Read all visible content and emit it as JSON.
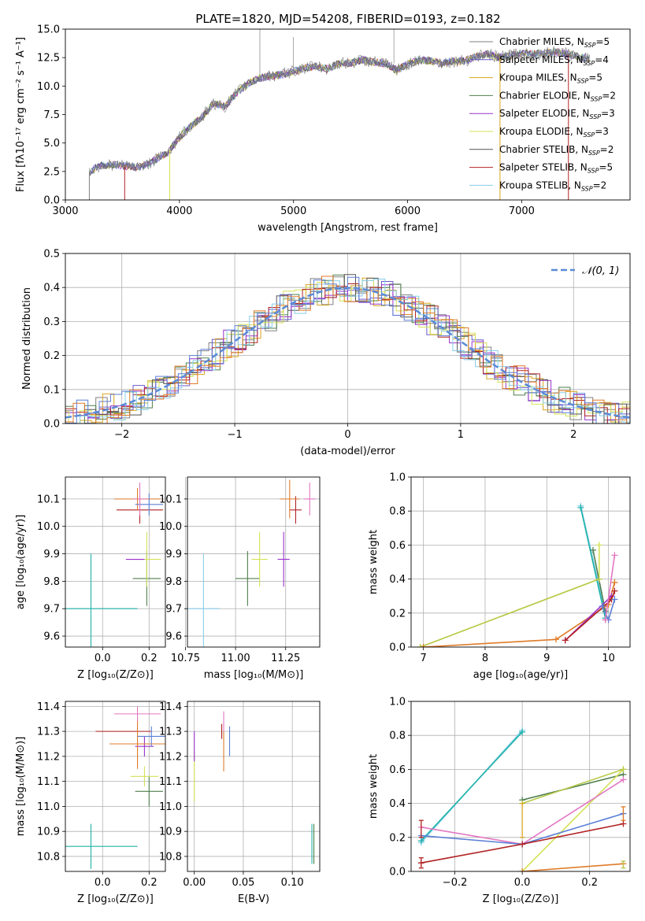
{
  "figure": {
    "title": "PLATE=1820, MJD=54208, FIBERID=0193, z=0.182"
  },
  "chart_data": [
    {
      "id": "spectrum",
      "type": "line",
      "xlabel": "wavelength [Angstrom, rest frame]",
      "ylabel": "Flux [fλ10⁻¹⁷ erg cm⁻² s⁻¹ A⁻¹]",
      "xlim": [
        3000,
        7950
      ],
      "ylim": [
        0,
        15
      ],
      "xticks": [
        3000,
        4000,
        5000,
        6000,
        7000
      ],
      "yticks": [
        0.0,
        2.5,
        5.0,
        7.5,
        10.0,
        12.5,
        15.0
      ],
      "grid": false,
      "legend_position": "right",
      "data_x": [
        3200,
        3300,
        3400,
        3500,
        3600,
        3700,
        3800,
        3900,
        4000,
        4100,
        4200,
        4300,
        4400,
        4500,
        4600,
        4700,
        4800,
        4900,
        5000,
        5100,
        5200,
        5300,
        5400,
        5500,
        5600,
        5700,
        5800,
        5900,
        6000,
        6100,
        6200,
        6300,
        6400,
        6500,
        6600,
        6700,
        6800,
        6900,
        7000,
        7100,
        7200,
        7300,
        7400,
        7500,
        7600
      ],
      "data_y": [
        2.4,
        3.0,
        3.1,
        3.0,
        2.9,
        3.0,
        3.6,
        4.2,
        5.5,
        6.5,
        7.3,
        8.5,
        8.2,
        9.4,
        10.2,
        10.7,
        10.9,
        11.0,
        11.3,
        11.6,
        11.7,
        11.5,
        12.0,
        12.0,
        12.3,
        12.1,
        12.0,
        11.4,
        11.9,
        12.3,
        12.2,
        12.0,
        12.2,
        12.2,
        12.6,
        12.8,
        12.5,
        12.7,
        12.9,
        12.8,
        12.9,
        13.0,
        12.8,
        12.6,
        12.4
      ],
      "series": [
        {
          "name": "Chabrier MILES, N_SSP=5",
          "color": "#808080"
        },
        {
          "name": "Salpeter MILES, N_SSP=4",
          "color": "#6a5acd"
        },
        {
          "name": "Kroupa MILES, N_SSP=5",
          "color": "#daa520"
        },
        {
          "name": "Chabrier ELODIE, N_SSP=2",
          "color": "#4f7f4f"
        },
        {
          "name": "Salpeter ELODIE, N_SSP=3",
          "color": "#9932cc"
        },
        {
          "name": "Kroupa ELODIE, N_SSP=3",
          "color": "#d4e157"
        },
        {
          "name": "Chabrier STELIB, N_SSP=2",
          "color": "#555555"
        },
        {
          "name": "Salpeter STELIB, N_SSP=5",
          "color": "#b22222"
        },
        {
          "name": "Kroupa STELIB, N_SSP=2",
          "color": "#87ceeb"
        }
      ],
      "legend_labels": [
        {
          "main": "Chabrier MILES, N",
          "sub": "SSP",
          "tail": "=5"
        },
        {
          "main": "Salpeter MILES, N",
          "sub": "SSP",
          "tail": "=4"
        },
        {
          "main": "Kroupa MILES, N",
          "sub": "SSP",
          "tail": "=5"
        },
        {
          "main": "Chabrier ELODIE, N",
          "sub": "SSP",
          "tail": "=2"
        },
        {
          "main": "Salpeter ELODIE, N",
          "sub": "SSP",
          "tail": "=3"
        },
        {
          "main": "Kroupa ELODIE, N",
          "sub": "SSP",
          "tail": "=3"
        },
        {
          "main": "Chabrier STELIB, N",
          "sub": "SSP",
          "tail": "=2"
        },
        {
          "main": "Salpeter STELIB, N",
          "sub": "SSP",
          "tail": "=5"
        },
        {
          "main": "Kroupa STELIB, N",
          "sub": "SSP",
          "tail": "=2"
        }
      ]
    },
    {
      "id": "residuals",
      "type": "line",
      "xlabel": "(data-model)/error",
      "ylabel": "Normed distribution",
      "xlim": [
        -2.5,
        2.5
      ],
      "ylim": [
        0,
        0.5
      ],
      "xticks": [
        -2,
        -1,
        0,
        1,
        2
      ],
      "yticks": [
        0.0,
        0.1,
        0.2,
        0.3,
        0.4,
        0.5
      ],
      "grid": true,
      "legend": "𝒩(0, 1)",
      "legend_position": "top-right",
      "histogram_bin_width": 0.1
    },
    {
      "id": "age-vs-Z",
      "type": "scatter",
      "xlabel": "Z [log₁₀(Z/Z⊙)]",
      "ylabel": "age  [log₁₀(age/yr)]",
      "xlim": [
        -0.16,
        0.27
      ],
      "ylim": [
        9.56,
        10.18
      ],
      "xticks": [
        0.0,
        0.2
      ],
      "yticks": [
        9.6,
        9.7,
        9.8,
        9.9,
        10.0,
        10.1
      ],
      "grid": true,
      "points": [
        {
          "x": -0.05,
          "y": 9.7,
          "xerr": 0.2,
          "yerr": 0.2,
          "color": "#20b2aa"
        },
        {
          "x": 0.19,
          "y": 9.81,
          "xerr": 0.06,
          "yerr": 0.1,
          "color": "#4f7f4f"
        },
        {
          "x": 0.19,
          "y": 9.88,
          "xerr": 0.06,
          "yerr": 0.1,
          "color": "#d4e157"
        },
        {
          "x": 0.14,
          "y": 9.88,
          "xerr": 0.04,
          "yerr": 0,
          "color": "#9932cc"
        },
        {
          "x": 0.16,
          "y": 10.06,
          "xerr": 0.1,
          "yerr": 0.05,
          "color": "#b22222"
        },
        {
          "x": 0.15,
          "y": 10.1,
          "xerr": 0.1,
          "yerr": 0.04,
          "color": "#e07b28"
        },
        {
          "x": 0.2,
          "y": 10.08,
          "xerr": 0.06,
          "yerr": 0.04,
          "color": "#5b7fd6"
        },
        {
          "x": 0.16,
          "y": 10.1,
          "xerr": 0.03,
          "yerr": 0.06,
          "color": "#e377c2"
        }
      ]
    },
    {
      "id": "age-vs-mass",
      "type": "scatter",
      "xlabel": "mass [log₁₀(M/M⊙)]",
      "ylabel": "",
      "xlim": [
        10.76,
        11.42
      ],
      "ylim": [
        9.56,
        10.18
      ],
      "xticks": [
        10.75,
        11.0,
        11.25
      ],
      "yticks": [
        9.6,
        9.7,
        9.8,
        9.9,
        10.0,
        10.1
      ],
      "grid": true,
      "points": [
        {
          "x": 10.84,
          "y": 9.7,
          "xerr": 0.08,
          "yerr": 0.2,
          "color": "#87ceeb"
        },
        {
          "x": 11.06,
          "y": 9.81,
          "xerr": 0.06,
          "yerr": 0.1,
          "color": "#4f7f4f"
        },
        {
          "x": 11.12,
          "y": 9.88,
          "xerr": 0.04,
          "yerr": 0.1,
          "color": "#d4e157"
        },
        {
          "x": 11.24,
          "y": 9.88,
          "xerr": 0.03,
          "yerr": 0.1,
          "color": "#9932cc"
        },
        {
          "x": 11.3,
          "y": 10.06,
          "xerr": 0.03,
          "yerr": 0.05,
          "color": "#b22222"
        },
        {
          "x": 11.27,
          "y": 10.1,
          "xerr": 0.05,
          "yerr": 0.07,
          "color": "#e07b28"
        },
        {
          "x": 11.37,
          "y": 10.1,
          "xerr": 0.03,
          "yerr": 0.06,
          "color": "#e377c2"
        }
      ]
    },
    {
      "id": "massweight-vs-age",
      "type": "line",
      "xlabel": "age  [log₁₀(age/yr)]",
      "ylabel": "mass weight",
      "xlim": [
        6.8,
        10.35
      ],
      "ylim": [
        0,
        1.0
      ],
      "xticks": [
        7,
        8,
        9,
        10
      ],
      "yticks": [
        0.0,
        0.2,
        0.4,
        0.6,
        0.8,
        1.0
      ],
      "grid": true,
      "series": [
        {
          "color": "#87ceeb",
          "x": [
            9.55,
            9.95
          ],
          "y": [
            0.83,
            0.2
          ]
        },
        {
          "color": "#20b2aa",
          "x": [
            9.55,
            9.95
          ],
          "y": [
            0.82,
            0.17
          ]
        },
        {
          "color": "#4f7f4f",
          "x": [
            9.75,
            9.95
          ],
          "y": [
            0.57,
            0.21
          ]
        },
        {
          "color": "#d4e157",
          "x": [
            6.95,
            9.85,
            9.85
          ],
          "y": [
            0.0,
            0.4,
            0.6
          ]
        },
        {
          "color": "#b8c94a",
          "x": [
            6.95,
            9.85
          ],
          "y": [
            0.0,
            0.4
          ]
        },
        {
          "color": "#e07b28",
          "x": [
            7.0,
            9.15,
            10.0,
            10.1
          ],
          "y": [
            0.0,
            0.045,
            0.25,
            0.38
          ]
        },
        {
          "color": "#9932cc",
          "x": [
            9.3,
            10.05
          ],
          "y": [
            0.04,
            0.3
          ]
        },
        {
          "color": "#b22222",
          "x": [
            9.3,
            10.05,
            10.1
          ],
          "y": [
            0.04,
            0.28,
            0.33
          ]
        },
        {
          "color": "#5b7fd6",
          "x": [
            9.9,
            10.0,
            10.1
          ],
          "y": [
            0.24,
            0.16,
            0.28
          ]
        },
        {
          "color": "#e377c2",
          "x": [
            9.95,
            10.1
          ],
          "y": [
            0.16,
            0.54
          ]
        }
      ]
    },
    {
      "id": "mass-vs-Z",
      "type": "scatter",
      "xlabel": "Z [log₁₀(Z/Z⊙)]",
      "ylabel": "mass [log₁₀(M/M⊙)]",
      "xlim": [
        -0.16,
        0.27
      ],
      "ylim": [
        10.74,
        11.42
      ],
      "xticks": [
        0.0,
        0.2
      ],
      "yticks": [
        10.8,
        10.9,
        11.0,
        11.1,
        11.2,
        11.3,
        11.4
      ],
      "grid": true,
      "points": [
        {
          "x": -0.05,
          "y": 10.84,
          "xerr": 0.2,
          "yerr": 0.09,
          "color": "#20b2aa"
        },
        {
          "x": 0.2,
          "y": 11.06,
          "xerr": 0.06,
          "yerr": 0.06,
          "color": "#4f7f4f"
        },
        {
          "x": 0.18,
          "y": 11.12,
          "xerr": 0.06,
          "yerr": 0.04,
          "color": "#d4e157"
        },
        {
          "x": 0.18,
          "y": 11.24,
          "xerr": 0.04,
          "yerr": 0.04,
          "color": "#9932cc"
        },
        {
          "x": 0.09,
          "y": 11.3,
          "xerr": 0.12,
          "yerr": 0.0,
          "color": "#b22222"
        },
        {
          "x": 0.15,
          "y": 11.25,
          "xerr": 0.12,
          "yerr": 0.1,
          "color": "#e07b28"
        },
        {
          "x": 0.21,
          "y": 11.28,
          "xerr": 0.06,
          "yerr": 0.04,
          "color": "#5b7fd6"
        },
        {
          "x": 0.15,
          "y": 11.37,
          "xerr": 0.1,
          "yerr": 0.03,
          "color": "#e377c2"
        }
      ]
    },
    {
      "id": "mass-vs-EBV",
      "type": "scatter",
      "xlabel": "E(B-V)",
      "ylabel": "",
      "xlim": [
        -0.007,
        0.128
      ],
      "ylim": [
        10.74,
        11.42
      ],
      "xticks": [
        0.0,
        0.05,
        0.1
      ],
      "yticks": [
        10.8,
        10.9,
        11.0,
        11.1,
        11.2,
        11.3,
        11.4
      ],
      "grid": true,
      "points": [
        {
          "x": 0.0,
          "y": 11.12,
          "xerr": 0,
          "yerr": 0.1,
          "color": "#d4e157"
        },
        {
          "x": 0.0,
          "y": 11.24,
          "xerr": 0,
          "yerr": 0.06,
          "color": "#9932cc"
        },
        {
          "x": 0.03,
          "y": 11.34,
          "xerr": 0,
          "yerr": 0.04,
          "color": "#e377c2"
        },
        {
          "x": 0.028,
          "y": 11.3,
          "xerr": 0,
          "yerr": 0.03,
          "color": "#b22222"
        },
        {
          "x": 0.03,
          "y": 11.22,
          "xerr": 0,
          "yerr": 0.08,
          "color": "#e07b28"
        },
        {
          "x": 0.036,
          "y": 11.26,
          "xerr": 0,
          "yerr": 0.06,
          "color": "#5b7fd6"
        },
        {
          "x": 0.12,
          "y": 10.85,
          "xerr": 0,
          "yerr": 0.08,
          "color": "#20b2aa"
        },
        {
          "x": 0.122,
          "y": 10.85,
          "xerr": 0,
          "yerr": 0.08,
          "color": "#4f7f4f"
        }
      ]
    },
    {
      "id": "massweight-vs-Z",
      "type": "line",
      "xlabel": "Z [log₁₀(Z/Z⊙)]",
      "ylabel": "mass weight",
      "xlim": [
        -0.33,
        0.32
      ],
      "ylim": [
        0,
        1.0
      ],
      "xticks": [
        -0.2,
        0.0,
        0.2
      ],
      "yticks": [
        0.0,
        0.2,
        0.4,
        0.6,
        0.8,
        1.0
      ],
      "grid": true,
      "series": [
        {
          "color": "#87ceeb",
          "x": [
            -0.3,
            0.0
          ],
          "y": [
            0.17,
            0.83
          ]
        },
        {
          "color": "#20b2aa",
          "x": [
            -0.3,
            0.0
          ],
          "y": [
            0.18,
            0.82
          ]
        },
        {
          "color": "#4f7f4f",
          "x": [
            0.0,
            0.3
          ],
          "y": [
            0.42,
            0.57
          ]
        },
        {
          "color": "#d4e157",
          "x": [
            0.0,
            0.3
          ],
          "y": [
            0.0,
            0.6
          ]
        },
        {
          "color": "#b8c94a",
          "x": [
            0.0,
            0.3
          ],
          "y": [
            0.4,
            0.6
          ]
        },
        {
          "color": "#e07b28",
          "x": [
            0.0,
            0.3
          ],
          "y": [
            0.0,
            0.045
          ]
        },
        {
          "color": "#e377c2",
          "x": [
            -0.3,
            0.0,
            0.3
          ],
          "y": [
            0.26,
            0.16,
            0.54
          ]
        },
        {
          "color": "#5b7fd6",
          "x": [
            -0.3,
            0.0,
            0.3
          ],
          "y": [
            0.21,
            0.16,
            0.34
          ]
        },
        {
          "color": "#b22222",
          "x": [
            -0.3,
            0.0,
            0.3
          ],
          "y": [
            0.05,
            0.16,
            0.28
          ]
        }
      ],
      "error_marks": [
        {
          "x": -0.3,
          "y": 0.25,
          "yerr": 0.05,
          "color": "#b22222"
        },
        {
          "x": -0.3,
          "y": 0.05,
          "yerr": 0.03,
          "color": "#b22222"
        },
        {
          "x": 0.0,
          "y": 0.3,
          "yerr": 0.1,
          "color": "#daa520"
        },
        {
          "x": 0.3,
          "y": 0.34,
          "yerr": 0.04,
          "color": "#e07b28"
        },
        {
          "x": 0.3,
          "y": 0.04,
          "yerr": 0.02,
          "color": "#b8c94a"
        }
      ]
    }
  ]
}
